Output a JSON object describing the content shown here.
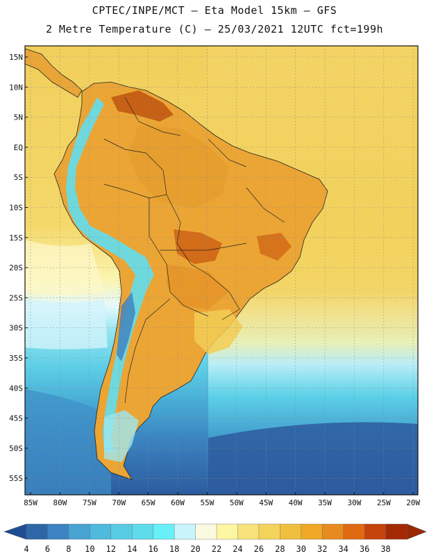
{
  "title": {
    "line1": "CPTEC/INPE/MCT –  Eta Model 15km – GFS",
    "line2": "2 Metre Temperature (C) – 25/03/2021 12UTC fct=199h"
  },
  "lat_labels": [
    "15N",
    "10N",
    "5N",
    "EQ",
    "5S",
    "10S",
    "15S",
    "20S",
    "25S",
    "30S",
    "35S",
    "40S",
    "45S",
    "50S",
    "55S"
  ],
  "lon_labels": [
    "85W",
    "80W",
    "75W",
    "70W",
    "65W",
    "60W",
    "55W",
    "50W",
    "45W",
    "40W",
    "35W",
    "30W",
    "25W",
    "20W"
  ],
  "colorbar": {
    "labels": [
      "4",
      "6",
      "8",
      "10",
      "12",
      "14",
      "16",
      "18",
      "20",
      "22",
      "24",
      "26",
      "28",
      "30",
      "32",
      "34",
      "36",
      "38"
    ],
    "colors": [
      "#2e66a8",
      "#3b83c2",
      "#47a3d1",
      "#4fb9de",
      "#58cbe4",
      "#5fdceb",
      "#67f0f7",
      "#c8f4fb",
      "#fbfae0",
      "#fdf6a2",
      "#f9e27a",
      "#f4d35a",
      "#efbf3f",
      "#eea826",
      "#e88b1f",
      "#e06a12",
      "#c5430c",
      "#a42a05"
    ],
    "end_low": "#1f4d93",
    "end_high": "#9a2604"
  },
  "palette": {
    "ocean_tropical": "#f1d163",
    "ocean_cool": "#5cd4e8",
    "ocean_cold": "#2e5fa5",
    "land_warm": "#eaa735",
    "land_hot": "#c3540f",
    "andes_cold": "#65e3f2"
  }
}
